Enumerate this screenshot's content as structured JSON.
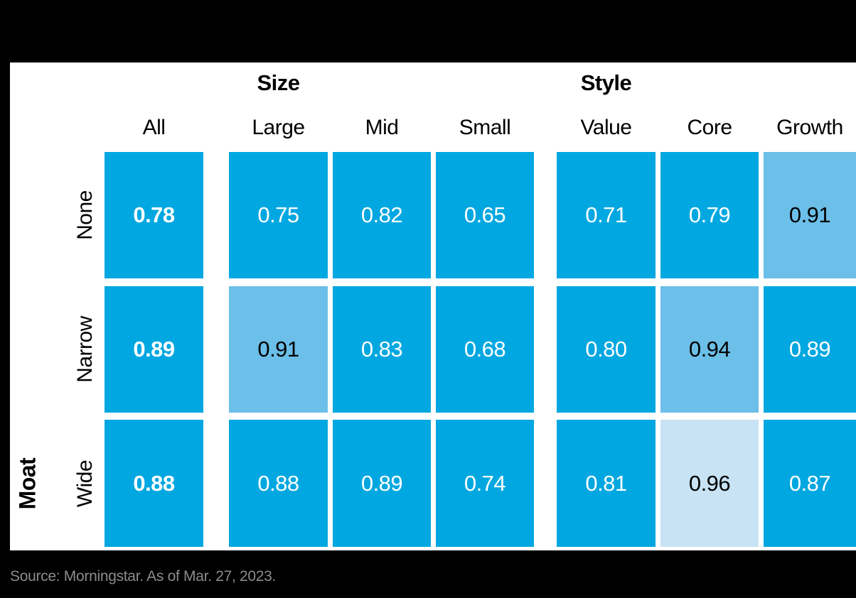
{
  "colors": {
    "background": "#000000",
    "panel": "#FFFFFF",
    "cell_base": "#00A7E0",
    "cell_light": "#6BBFE8",
    "cell_lighter": "#C7E3F4",
    "text_on_base": "#FFFFFF",
    "text_on_light": "#000000",
    "label_text": "#000000",
    "source_text": "#8C8C8C"
  },
  "source": "Source: Morningstar. As of Mar. 27, 2023.",
  "chart_data": {
    "type": "heatmap",
    "row_dimension": "Moat",
    "column_groups": [
      {
        "label": "Size",
        "columns": [
          "Large",
          "Mid",
          "Small"
        ]
      },
      {
        "label": "Style",
        "columns": [
          "Value",
          "Core",
          "Growth"
        ]
      }
    ],
    "columns": [
      "All",
      "Large",
      "Mid",
      "Small",
      "Value",
      "Core",
      "Growth"
    ],
    "rows": [
      {
        "label": "None",
        "cells": [
          {
            "display": "0.78",
            "value": 0.78,
            "shade": "base",
            "bold": true
          },
          {
            "display": "0.75",
            "value": 0.75,
            "shade": "base",
            "bold": false
          },
          {
            "display": "0.82",
            "value": 0.82,
            "shade": "base",
            "bold": false
          },
          {
            "display": "0.65",
            "value": 0.65,
            "shade": "base",
            "bold": false
          },
          {
            "display": "0.71",
            "value": 0.71,
            "shade": "base",
            "bold": false
          },
          {
            "display": "0.79",
            "value": 0.79,
            "shade": "base",
            "bold": false
          },
          {
            "display": "0.91",
            "value": 0.91,
            "shade": "light",
            "bold": false
          }
        ]
      },
      {
        "label": "Narrow",
        "cells": [
          {
            "display": "0.89",
            "value": 0.89,
            "shade": "base",
            "bold": true
          },
          {
            "display": "0.91",
            "value": 0.91,
            "shade": "light",
            "bold": false
          },
          {
            "display": "0.83",
            "value": 0.83,
            "shade": "base",
            "bold": false
          },
          {
            "display": "0.68",
            "value": 0.68,
            "shade": "base",
            "bold": false
          },
          {
            "display": "0.80",
            "value": 0.8,
            "shade": "base",
            "bold": false
          },
          {
            "display": "0.94",
            "value": 0.94,
            "shade": "light",
            "bold": false
          },
          {
            "display": "0.89",
            "value": 0.89,
            "shade": "base",
            "bold": false
          }
        ]
      },
      {
        "label": "Wide",
        "cells": [
          {
            "display": "0.88",
            "value": 0.88,
            "shade": "base",
            "bold": true
          },
          {
            "display": "0.88",
            "value": 0.88,
            "shade": "base",
            "bold": false
          },
          {
            "display": "0.89",
            "value": 0.89,
            "shade": "base",
            "bold": false
          },
          {
            "display": "0.74",
            "value": 0.74,
            "shade": "base",
            "bold": false
          },
          {
            "display": "0.81",
            "value": 0.81,
            "shade": "base",
            "bold": false
          },
          {
            "display": "0.96",
            "value": 0.96,
            "shade": "lighter",
            "bold": false
          },
          {
            "display": "0.87",
            "value": 0.87,
            "shade": "base",
            "bold": false
          }
        ]
      }
    ]
  }
}
